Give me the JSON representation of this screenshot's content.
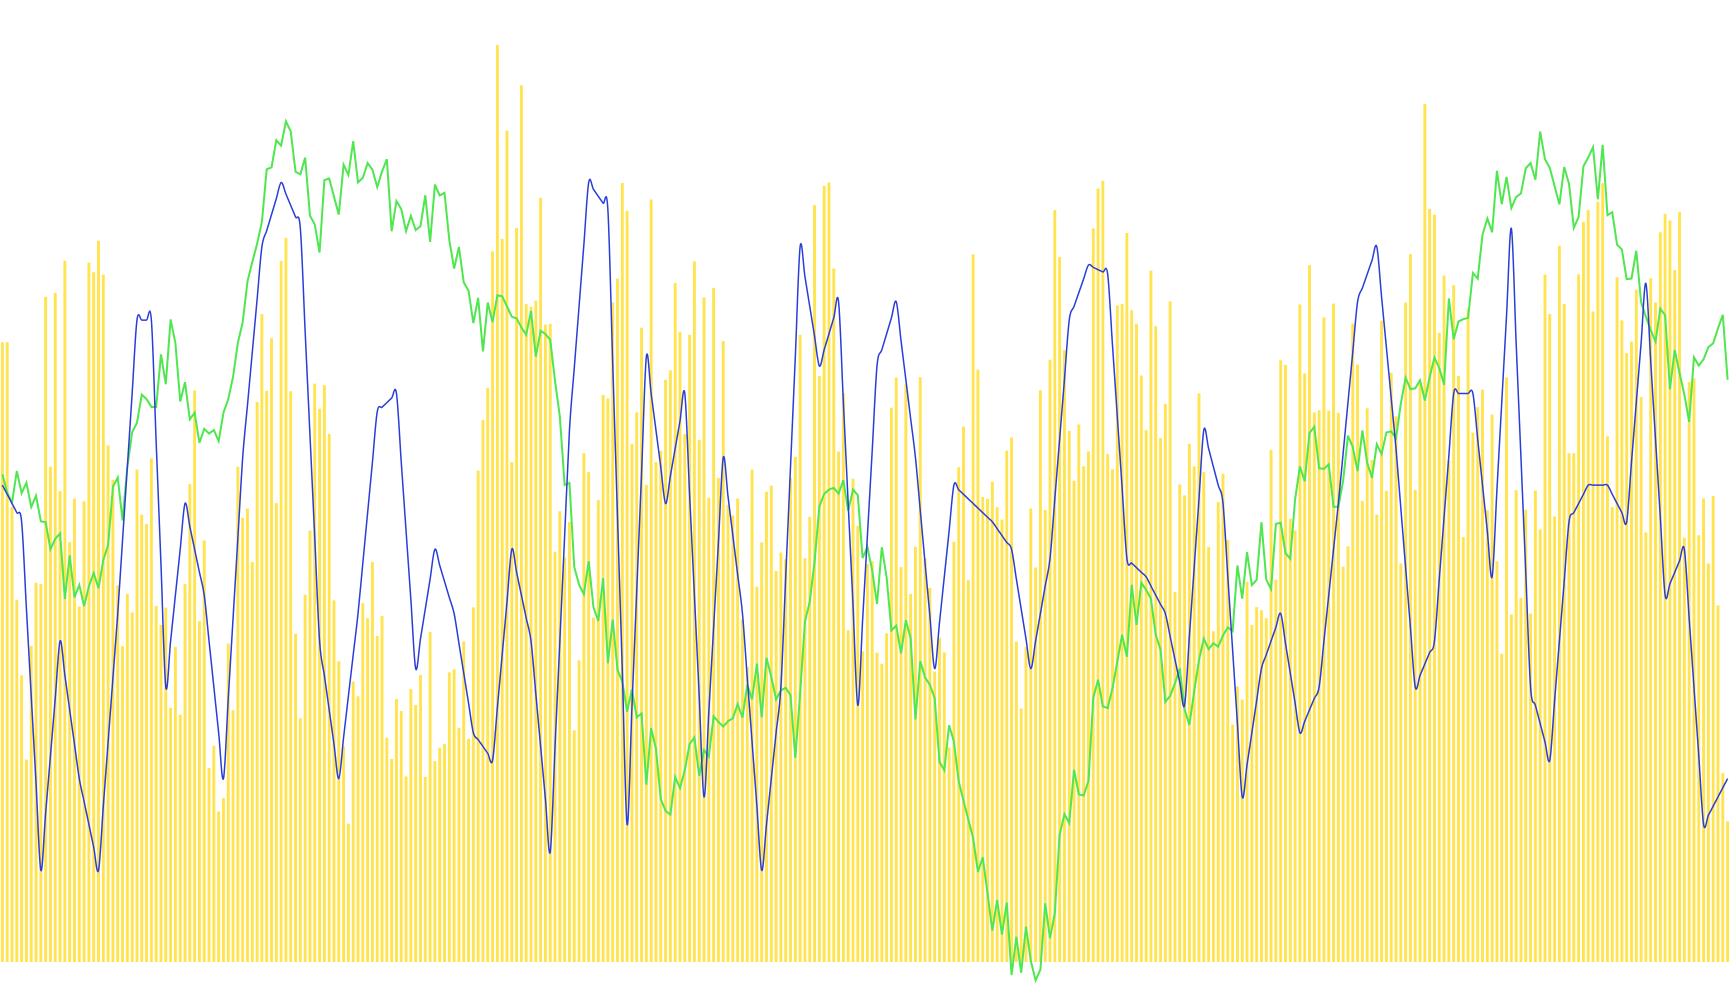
{
  "chart_data": {
    "type": "bar",
    "x_count": 360,
    "ylim": [
      0,
      100
    ],
    "grid": false,
    "legend": "none",
    "colors": {
      "bars": "#FFE34F",
      "green_line": "#4FE64F",
      "blue_line": "#2A3DD6",
      "background": "#FFFFFF"
    },
    "bars_keypoints": [
      [
        0,
        80
      ],
      [
        5,
        25
      ],
      [
        10,
        90
      ],
      [
        15,
        55
      ],
      [
        20,
        92
      ],
      [
        25,
        40
      ],
      [
        30,
        72
      ],
      [
        35,
        35
      ],
      [
        40,
        68
      ],
      [
        45,
        18
      ],
      [
        50,
        60
      ],
      [
        55,
        95
      ],
      [
        58,
        88
      ],
      [
        62,
        40
      ],
      [
        67,
        78
      ],
      [
        72,
        25
      ],
      [
        77,
        55
      ],
      [
        82,
        32
      ],
      [
        87,
        30
      ],
      [
        92,
        35
      ],
      [
        97,
        40
      ],
      [
        102,
        95
      ],
      [
        107,
        96
      ],
      [
        110,
        98
      ],
      [
        114,
        70
      ],
      [
        119,
        45
      ],
      [
        124,
        62
      ],
      [
        129,
        92
      ],
      [
        134,
        90
      ],
      [
        139,
        80
      ],
      [
        144,
        85
      ],
      [
        149,
        72
      ],
      [
        154,
        55
      ],
      [
        158,
        60
      ],
      [
        162,
        45
      ],
      [
        167,
        78
      ],
      [
        172,
        90
      ],
      [
        177,
        58
      ],
      [
        182,
        50
      ],
      [
        187,
        75
      ],
      [
        192,
        68
      ],
      [
        197,
        40
      ],
      [
        202,
        80
      ],
      [
        207,
        65
      ],
      [
        212,
        45
      ],
      [
        217,
        68
      ],
      [
        222,
        85
      ],
      [
        227,
        90
      ],
      [
        232,
        82
      ],
      [
        237,
        78
      ],
      [
        242,
        75
      ],
      [
        247,
        70
      ],
      [
        252,
        62
      ],
      [
        257,
        40
      ],
      [
        262,
        48
      ],
      [
        267,
        78
      ],
      [
        272,
        80
      ],
      [
        277,
        65
      ],
      [
        282,
        75
      ],
      [
        287,
        72
      ],
      [
        292,
        80
      ],
      [
        297,
        85
      ],
      [
        302,
        75
      ],
      [
        307,
        68
      ],
      [
        312,
        55
      ],
      [
        317,
        60
      ],
      [
        322,
        82
      ],
      [
        327,
        78
      ],
      [
        332,
        92
      ],
      [
        337,
        80
      ],
      [
        342,
        72
      ],
      [
        347,
        90
      ],
      [
        352,
        80
      ],
      [
        356,
        70
      ],
      [
        359,
        20
      ]
    ],
    "green_series_keypoints": [
      [
        0,
        55
      ],
      [
        5,
        50
      ],
      [
        10,
        45
      ],
      [
        15,
        40
      ],
      [
        20,
        44
      ],
      [
        25,
        52
      ],
      [
        30,
        62
      ],
      [
        35,
        67
      ],
      [
        40,
        60
      ],
      [
        45,
        55
      ],
      [
        50,
        72
      ],
      [
        55,
        86
      ],
      [
        60,
        90
      ],
      [
        65,
        80
      ],
      [
        70,
        85
      ],
      [
        75,
        88
      ],
      [
        80,
        84
      ],
      [
        85,
        80
      ],
      [
        90,
        82
      ],
      [
        95,
        78
      ],
      [
        100,
        70
      ],
      [
        105,
        72
      ],
      [
        110,
        68
      ],
      [
        115,
        64
      ],
      [
        120,
        42
      ],
      [
        125,
        38
      ],
      [
        130,
        28
      ],
      [
        135,
        22
      ],
      [
        140,
        18
      ],
      [
        145,
        24
      ],
      [
        150,
        22
      ],
      [
        155,
        28
      ],
      [
        160,
        32
      ],
      [
        165,
        25
      ],
      [
        170,
        48
      ],
      [
        175,
        55
      ],
      [
        180,
        45
      ],
      [
        185,
        40
      ],
      [
        190,
        30
      ],
      [
        195,
        25
      ],
      [
        200,
        20
      ],
      [
        205,
        8
      ],
      [
        210,
        2
      ],
      [
        215,
        0
      ],
      [
        218,
        6
      ],
      [
        222,
        15
      ],
      [
        227,
        25
      ],
      [
        232,
        35
      ],
      [
        237,
        40
      ],
      [
        242,
        30
      ],
      [
        247,
        28
      ],
      [
        252,
        35
      ],
      [
        257,
        40
      ],
      [
        262,
        44
      ],
      [
        267,
        45
      ],
      [
        272,
        55
      ],
      [
        277,
        52
      ],
      [
        282,
        55
      ],
      [
        287,
        58
      ],
      [
        292,
        60
      ],
      [
        297,
        62
      ],
      [
        302,
        70
      ],
      [
        307,
        75
      ],
      [
        312,
        85
      ],
      [
        317,
        88
      ],
      [
        322,
        86
      ],
      [
        327,
        84
      ],
      [
        332,
        87
      ],
      [
        337,
        80
      ],
      [
        342,
        72
      ],
      [
        347,
        66
      ],
      [
        352,
        62
      ],
      [
        356,
        68
      ],
      [
        359,
        66
      ]
    ],
    "blue_series_keypoints": [
      [
        0,
        52
      ],
      [
        4,
        48
      ],
      [
        8,
        10
      ],
      [
        12,
        35
      ],
      [
        16,
        20
      ],
      [
        20,
        10
      ],
      [
        24,
        38
      ],
      [
        28,
        70
      ],
      [
        31,
        70
      ],
      [
        34,
        30
      ],
      [
        38,
        50
      ],
      [
        42,
        40
      ],
      [
        46,
        20
      ],
      [
        50,
        55
      ],
      [
        54,
        78
      ],
      [
        58,
        85
      ],
      [
        62,
        80
      ],
      [
        66,
        35
      ],
      [
        70,
        20
      ],
      [
        74,
        38
      ],
      [
        78,
        60
      ],
      [
        82,
        62
      ],
      [
        86,
        32
      ],
      [
        90,
        45
      ],
      [
        94,
        38
      ],
      [
        98,
        25
      ],
      [
        102,
        22
      ],
      [
        106,
        45
      ],
      [
        110,
        35
      ],
      [
        114,
        12
      ],
      [
        118,
        58
      ],
      [
        122,
        85
      ],
      [
        126,
        82
      ],
      [
        130,
        15
      ],
      [
        134,
        66
      ],
      [
        138,
        50
      ],
      [
        142,
        62
      ],
      [
        146,
        18
      ],
      [
        150,
        55
      ],
      [
        154,
        38
      ],
      [
        158,
        10
      ],
      [
        162,
        30
      ],
      [
        166,
        78
      ],
      [
        170,
        65
      ],
      [
        174,
        72
      ],
      [
        178,
        28
      ],
      [
        182,
        65
      ],
      [
        186,
        72
      ],
      [
        190,
        55
      ],
      [
        194,
        32
      ],
      [
        198,
        52
      ],
      [
        202,
        50
      ],
      [
        206,
        48
      ],
      [
        210,
        45
      ],
      [
        214,
        32
      ],
      [
        218,
        44
      ],
      [
        222,
        70
      ],
      [
        226,
        76
      ],
      [
        230,
        75
      ],
      [
        234,
        44
      ],
      [
        238,
        42
      ],
      [
        242,
        38
      ],
      [
        246,
        28
      ],
      [
        250,
        58
      ],
      [
        254,
        50
      ],
      [
        258,
        18
      ],
      [
        262,
        32
      ],
      [
        266,
        38
      ],
      [
        270,
        25
      ],
      [
        274,
        30
      ],
      [
        278,
        50
      ],
      [
        282,
        72
      ],
      [
        286,
        78
      ],
      [
        290,
        56
      ],
      [
        294,
        30
      ],
      [
        298,
        35
      ],
      [
        302,
        62
      ],
      [
        306,
        62
      ],
      [
        310,
        42
      ],
      [
        314,
        80
      ],
      [
        318,
        30
      ],
      [
        322,
        22
      ],
      [
        326,
        48
      ],
      [
        330,
        52
      ],
      [
        334,
        52
      ],
      [
        338,
        48
      ],
      [
        342,
        74
      ],
      [
        346,
        40
      ],
      [
        350,
        45
      ],
      [
        354,
        15
      ],
      [
        359,
        20
      ]
    ]
  }
}
